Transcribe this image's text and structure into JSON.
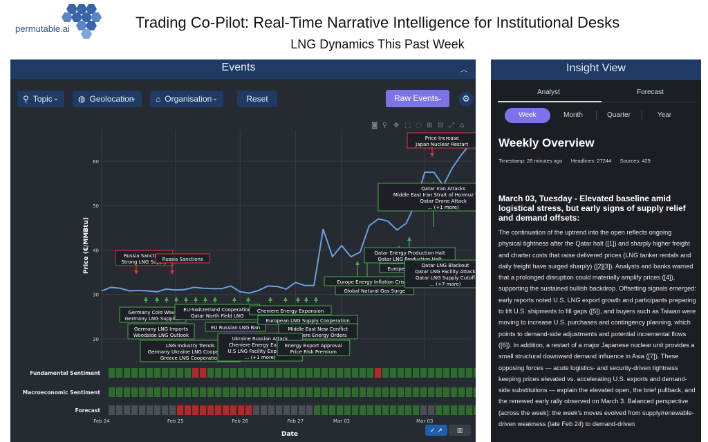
{
  "header": {
    "logo_text": "permutable.ai",
    "title": "Trading Co-Pilot: Real-Time Narrative Intelligence for Institutional Desks",
    "subtitle": "LNG Dynamics This Past Week"
  },
  "events_panel": {
    "title": "Events",
    "filters": [
      {
        "label": "Topic",
        "icon": "zoom-icon"
      },
      {
        "label": "Geolocation",
        "icon": "globe-icon"
      },
      {
        "label": "Organisation",
        "icon": "bank-icon"
      }
    ],
    "reset_label": "Reset",
    "raw_events_label": "Raw Events",
    "colors": {
      "up": "#4aa84a",
      "down": "#d63a3a",
      "line": "#6ba0e0",
      "accent": "#7b74e8"
    }
  },
  "chart_data": {
    "type": "line",
    "ylabel": "Price (€/MMBtu)",
    "xlabel": "Date",
    "ylim": [
      15,
      67
    ],
    "yticks": [
      20,
      30,
      40,
      50,
      60
    ],
    "xticks": [
      "Feb 24",
      "Feb 25",
      "Feb 26",
      "Feb 27",
      "Mar 02",
      "Mar 03"
    ],
    "x": [
      0,
      1,
      2,
      3,
      4,
      5,
      6,
      7,
      8,
      9,
      10,
      11,
      12,
      13,
      14,
      15,
      16,
      17,
      18,
      19,
      20,
      21,
      22,
      23,
      24,
      25,
      26,
      27,
      28,
      29,
      30,
      31,
      32,
      33,
      34,
      35,
      36,
      37,
      38,
      39,
      40
    ],
    "series": [
      {
        "values": [
          30.8,
          31.6,
          31.4,
          30.8,
          30.9,
          30.8,
          30.6,
          31.2,
          31.0,
          31.1,
          31.6,
          31.4,
          31.3,
          31.3,
          31.9,
          30.6,
          30.3,
          30.9,
          31.9,
          31.8,
          31.2,
          32.7,
          32.0,
          32.0,
          44.7,
          38.5,
          41.0,
          38.5,
          39.5,
          45.5,
          47.0,
          46.5,
          44.5,
          46.0,
          50.5,
          57.5,
          57.5,
          54.5,
          58.5,
          61.5,
          64.0
        ]
      }
    ],
    "annotations_up": [
      "Germany Cold Wave\nGermany LNG Supplies",
      "EU-Switzerland Cooperation\nQatar North Field LNG",
      "Germany LNG Imports\nWoodside LNG Outlook",
      "EU Russian LNG Ban",
      "Cheniere Energy Expansion",
      "European LNG Supply Cooperation",
      "Middle East New Conflict\nCheniere Energy Orders",
      "LNG Industry Trends\nGermany Ukraine LNG Cooperation\nGreece LNG Cooperation",
      "Ukraine Russian Attack\nCheniere Energy Earnings\nU.S LNG Facility Expansion\n... (+1 more)",
      "Energy Export Approval\nPrice Risk Premium",
      "Europe Energy Inflation Crisis",
      "Global Natural Gas Surge",
      "Qatar Energy Production Halt\nQatar LNG Production Halt",
      "Europe Gas Price Surge",
      "Qatar LNG Blackout\nQatar LNG Facility Attack\nQatar LNG Supply Cutoff\n... (+7 more)",
      "Qatar Iran Attacks\nMiddle East Iran Strait of Hormuz Threats\nQatar Drone Attack\n... (+1 more)"
    ],
    "annotations_down": [
      "Russia Sanctions\nStrong LNG Supply",
      "Russia Sanctions",
      "Price Increase\nJapan Nuclear Restart"
    ],
    "sentiment_rows": [
      {
        "label": "Fundamental Sentiment",
        "cells": "gggggggggggrrggggggggggggggggggggggrgggggggggggggggggggggg"
      },
      {
        "label": "Macroeconomic Sentiment",
        "cells": "gggggggggggggggggggggggggggggggggggggggggggggggggggggggggg"
      },
      {
        "label": "Forecast",
        "cells": "kkkkkkkkkrrrrrrrrrrkkkkkkkkggggggggggggggkkggggggggggggggg"
      }
    ]
  },
  "insight_panel": {
    "title": "Insight View",
    "tabs": [
      "Analyst",
      "Forecast"
    ],
    "periods": [
      "Week",
      "Month",
      "Quarter",
      "Year"
    ],
    "heading": "Weekly Overview",
    "meta": "Timestamp: 28 minutes ago      Headlines: 27244      Sources: 429",
    "section_title": "March 03, Tuesday - Elevated baseline amid logistical stress, but early signs of supply relief and demand offsets:",
    "body": "The continuation of the uptrend into the open reflects ongoing physical tightness after the Qatar halt ([1]) and sharply higher freight and charter costs that raise delivered prices (LNG tanker rentals and daily freight have surged sharply) ([2][3]). Analysts and banks warned that a prolonged disruption could materially amplify prices ([4]), supporting the sustained bullish backdrop. Offsetting signals emerged: early reports noted U.S. LNG export growth and participants preparing to lift U.S. shipments to fill gaps ([5]), and buyers such as Taiwan were moving to increase U.S. purchases and contingency planning, which points to demand-side adjustments and potential incremental flows ([6]). In addition, a restart of a major Japanese nuclear unit provides a small structural downward demand influence in Asia ([7]). These opposing forces — acute logistics- and security-driven tightness keeping prices elevated vs. accelerating U.S. exports and demand-side substitutions — explain the elevated open, the brief pullback, and the renewed early rally observed on March 3. Balanced perspective (across the week): the week's moves evolved from supply/renewable-driven weakness (late Feb 24) to demand-driven"
  }
}
